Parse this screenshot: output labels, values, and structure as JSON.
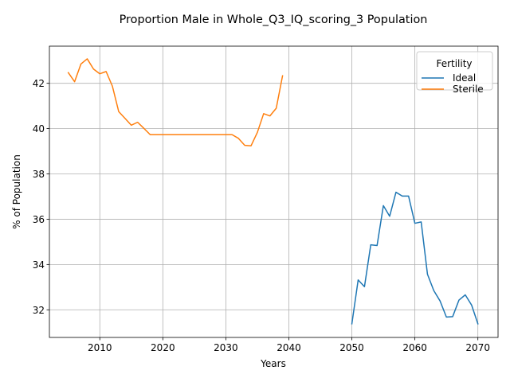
{
  "chart_data": {
    "type": "line",
    "title": "Proportion Male in Whole_Q3_IQ_scoring_3 Population",
    "xlabel": "Years",
    "ylabel": "% of Population",
    "xlim": [
      2002.0,
      2073.2
    ],
    "ylim": [
      30.78,
      43.64
    ],
    "xticks": [
      2010,
      2020,
      2030,
      2040,
      2050,
      2060,
      2070
    ],
    "yticks": [
      32,
      34,
      36,
      38,
      40,
      42
    ],
    "grid": true,
    "legend": {
      "title": "Fertility",
      "placement": "top-right"
    },
    "series": [
      {
        "name": "Ideal",
        "color": "#1f77b4",
        "x": [
          2050,
          2051,
          2052,
          2053,
          2054,
          2055,
          2056,
          2057,
          2058,
          2059,
          2060,
          2061,
          2062,
          2063,
          2064,
          2065,
          2066,
          2067,
          2068,
          2069,
          2070
        ],
        "y": [
          31.38,
          33.32,
          33.02,
          34.87,
          34.84,
          36.6,
          36.13,
          37.19,
          37.02,
          37.02,
          35.82,
          35.88,
          33.57,
          32.85,
          32.39,
          31.68,
          31.7,
          32.43,
          32.66,
          32.21,
          31.38
        ]
      },
      {
        "name": "Sterile",
        "color": "#ff7f0e",
        "x": [
          2005,
          2006,
          2007,
          2008,
          2009,
          2010,
          2011,
          2012,
          2013,
          2014,
          2015,
          2016,
          2017,
          2018,
          2019,
          2020,
          2021,
          2022,
          2023,
          2024,
          2025,
          2026,
          2027,
          2028,
          2029,
          2030,
          2031,
          2032,
          2033,
          2034,
          2035,
          2036,
          2037,
          2038,
          2039
        ],
        "y": [
          42.47,
          42.07,
          42.85,
          43.08,
          42.63,
          42.42,
          42.52,
          41.87,
          40.75,
          40.45,
          40.15,
          40.28,
          40.01,
          39.73,
          39.73,
          39.73,
          39.73,
          39.73,
          39.73,
          39.73,
          39.73,
          39.73,
          39.73,
          39.73,
          39.73,
          39.73,
          39.73,
          39.57,
          39.26,
          39.24,
          39.83,
          40.66,
          40.56,
          40.9,
          42.33
        ]
      }
    ]
  }
}
